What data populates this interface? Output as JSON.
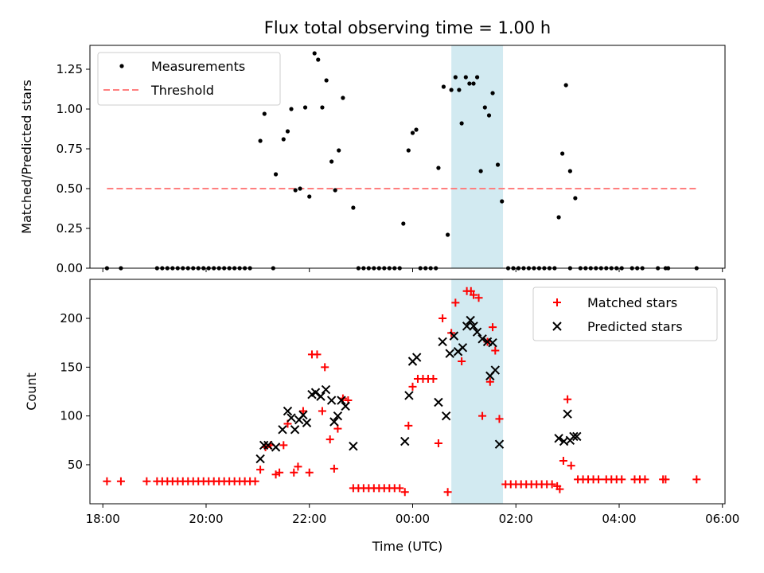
{
  "chart_data": {
    "title": "Flux total observing time = 1.00 h",
    "xlabel": "Time (UTC)",
    "x_unit": "hours since 18:00 UTC",
    "xlim": [
      -0.25,
      12.05
    ],
    "xticks": [
      {
        "x": 0,
        "label": "18:00"
      },
      {
        "x": 2,
        "label": "20:00"
      },
      {
        "x": 4,
        "label": "22:00"
      },
      {
        "x": 6,
        "label": "00:00"
      },
      {
        "x": 8,
        "label": "02:00"
      },
      {
        "x": 10,
        "label": "04:00"
      },
      {
        "x": 12,
        "label": "06:00"
      }
    ],
    "highlight_span": {
      "x0": 6.75,
      "x1": 7.75,
      "color": "#add8e6"
    },
    "colors": {
      "measurements": "#000000",
      "threshold": "#ff7f7f",
      "matched": "#ff0000",
      "predicted": "#000000",
      "span": "#add8e6"
    },
    "top": {
      "type": "scatter",
      "ylabel": "Matched/Predicted stars",
      "ylim": [
        0,
        1.4
      ],
      "yticks": [
        {
          "y": 0,
          "label": "0.00"
        },
        {
          "y": 0.25,
          "label": "0.25"
        },
        {
          "y": 0.5,
          "label": "0.50"
        },
        {
          "y": 0.75,
          "label": "0.75"
        },
        {
          "y": 1.0,
          "label": "1.00"
        },
        {
          "y": 1.25,
          "label": "1.25"
        }
      ],
      "legend": {
        "position": "upper-left",
        "entries": [
          "Measurements",
          "Threshold"
        ]
      },
      "threshold": {
        "value": 0.5,
        "x0": 0.08,
        "x1": 11.5
      },
      "measurements": [
        [
          0.08,
          0
        ],
        [
          0.35,
          0
        ],
        [
          1.05,
          0
        ],
        [
          1.15,
          0
        ],
        [
          1.25,
          0
        ],
        [
          1.35,
          0
        ],
        [
          1.45,
          0
        ],
        [
          1.55,
          0
        ],
        [
          1.65,
          0
        ],
        [
          1.75,
          0
        ],
        [
          1.85,
          0
        ],
        [
          1.95,
          0
        ],
        [
          2.05,
          0
        ],
        [
          2.15,
          0
        ],
        [
          2.25,
          0
        ],
        [
          2.35,
          0
        ],
        [
          2.45,
          0
        ],
        [
          2.55,
          0
        ],
        [
          2.65,
          0
        ],
        [
          2.75,
          0
        ],
        [
          2.85,
          0
        ],
        [
          3.3,
          0
        ],
        [
          3.05,
          0.8
        ],
        [
          3.13,
          0.97
        ],
        [
          3.35,
          0.59
        ],
        [
          3.5,
          0.81
        ],
        [
          3.58,
          0.86
        ],
        [
          3.65,
          1.0
        ],
        [
          3.73,
          0.49
        ],
        [
          3.82,
          0.5
        ],
        [
          3.92,
          1.01
        ],
        [
          4.0,
          0.45
        ],
        [
          4.1,
          1.35
        ],
        [
          4.17,
          1.31
        ],
        [
          4.25,
          1.01
        ],
        [
          4.33,
          1.18
        ],
        [
          4.43,
          0.67
        ],
        [
          4.5,
          0.49
        ],
        [
          4.57,
          0.74
        ],
        [
          4.65,
          1.07
        ],
        [
          4.85,
          0.38
        ],
        [
          4.95,
          0
        ],
        [
          5.05,
          0
        ],
        [
          5.15,
          0
        ],
        [
          5.25,
          0
        ],
        [
          5.35,
          0
        ],
        [
          5.45,
          0
        ],
        [
          5.55,
          0
        ],
        [
          5.65,
          0
        ],
        [
          5.75,
          0
        ],
        [
          5.82,
          0.28
        ],
        [
          5.92,
          0.74
        ],
        [
          6.0,
          0.85
        ],
        [
          6.07,
          0.87
        ],
        [
          6.15,
          0
        ],
        [
          6.25,
          0
        ],
        [
          6.35,
          0
        ],
        [
          6.45,
          0
        ],
        [
          6.5,
          0.63
        ],
        [
          6.6,
          1.14
        ],
        [
          6.68,
          0.21
        ],
        [
          6.75,
          1.12
        ],
        [
          6.83,
          1.2
        ],
        [
          6.9,
          1.12
        ],
        [
          6.95,
          0.91
        ],
        [
          7.03,
          1.2
        ],
        [
          7.1,
          1.16
        ],
        [
          7.18,
          1.16
        ],
        [
          7.25,
          1.2
        ],
        [
          7.32,
          0.61
        ],
        [
          7.4,
          1.01
        ],
        [
          7.48,
          0.96
        ],
        [
          7.55,
          1.1
        ],
        [
          7.65,
          0.65
        ],
        [
          7.73,
          0.42
        ],
        [
          7.85,
          0
        ],
        [
          7.95,
          0
        ],
        [
          8.05,
          0
        ],
        [
          8.15,
          0
        ],
        [
          8.25,
          0
        ],
        [
          8.35,
          0
        ],
        [
          8.45,
          0
        ],
        [
          8.55,
          0
        ],
        [
          8.65,
          0
        ],
        [
          8.75,
          0
        ],
        [
          8.83,
          0.32
        ],
        [
          8.9,
          0.72
        ],
        [
          8.97,
          1.15
        ],
        [
          9.05,
          0.61
        ],
        [
          9.15,
          0.44
        ],
        [
          9.05,
          0
        ],
        [
          9.25,
          0
        ],
        [
          9.35,
          0
        ],
        [
          9.45,
          0
        ],
        [
          9.55,
          0
        ],
        [
          9.65,
          0
        ],
        [
          9.75,
          0
        ],
        [
          9.85,
          0
        ],
        [
          9.95,
          0
        ],
        [
          10.05,
          0
        ],
        [
          10.25,
          0
        ],
        [
          10.35,
          0
        ],
        [
          10.45,
          0
        ],
        [
          10.75,
          0
        ],
        [
          10.9,
          0
        ],
        [
          10.95,
          0
        ],
        [
          11.5,
          0
        ]
      ]
    },
    "bottom": {
      "type": "scatter",
      "ylabel": "Count",
      "ylim": [
        10,
        240
      ],
      "yticks": [
        {
          "y": 50,
          "label": "50"
        },
        {
          "y": 100,
          "label": "100"
        },
        {
          "y": 150,
          "label": "150"
        },
        {
          "y": 200,
          "label": "200"
        }
      ],
      "legend": {
        "position": "upper-right",
        "entries": [
          "Matched stars",
          "Predicted stars"
        ]
      },
      "matched": [
        [
          0.08,
          33
        ],
        [
          0.35,
          33
        ],
        [
          0.85,
          33
        ],
        [
          1.05,
          33
        ],
        [
          1.15,
          33
        ],
        [
          1.25,
          33
        ],
        [
          1.35,
          33
        ],
        [
          1.45,
          33
        ],
        [
          1.55,
          33
        ],
        [
          1.65,
          33
        ],
        [
          1.75,
          33
        ],
        [
          1.85,
          33
        ],
        [
          1.95,
          33
        ],
        [
          2.05,
          33
        ],
        [
          2.15,
          33
        ],
        [
          2.25,
          33
        ],
        [
          2.35,
          33
        ],
        [
          2.45,
          33
        ],
        [
          2.55,
          33
        ],
        [
          2.65,
          33
        ],
        [
          2.75,
          33
        ],
        [
          2.85,
          33
        ],
        [
          2.95,
          33
        ],
        [
          3.05,
          45
        ],
        [
          3.15,
          68
        ],
        [
          3.25,
          70
        ],
        [
          3.35,
          40
        ],
        [
          3.42,
          42
        ],
        [
          3.5,
          70
        ],
        [
          3.58,
          92
        ],
        [
          3.7,
          42
        ],
        [
          3.78,
          48
        ],
        [
          3.88,
          105
        ],
        [
          4.0,
          42
        ],
        [
          4.05,
          163
        ],
        [
          4.15,
          163
        ],
        [
          4.25,
          105
        ],
        [
          4.3,
          150
        ],
        [
          4.4,
          76
        ],
        [
          4.48,
          46
        ],
        [
          4.55,
          87
        ],
        [
          4.65,
          118
        ],
        [
          4.75,
          116
        ],
        [
          4.85,
          26
        ],
        [
          4.95,
          26
        ],
        [
          5.05,
          26
        ],
        [
          5.15,
          26
        ],
        [
          5.25,
          26
        ],
        [
          5.35,
          26
        ],
        [
          5.45,
          26
        ],
        [
          5.55,
          26
        ],
        [
          5.65,
          26
        ],
        [
          5.75,
          26
        ],
        [
          5.85,
          22
        ],
        [
          5.92,
          90
        ],
        [
          6.0,
          130
        ],
        [
          6.1,
          138
        ],
        [
          6.2,
          138
        ],
        [
          6.3,
          138
        ],
        [
          6.4,
          138
        ],
        [
          6.5,
          72
        ],
        [
          6.58,
          200
        ],
        [
          6.68,
          22
        ],
        [
          6.75,
          185
        ],
        [
          6.83,
          216
        ],
        [
          6.95,
          156
        ],
        [
          7.05,
          228
        ],
        [
          7.13,
          228
        ],
        [
          7.18,
          224
        ],
        [
          7.28,
          221
        ],
        [
          7.35,
          100
        ],
        [
          7.45,
          176
        ],
        [
          7.5,
          135
        ],
        [
          7.55,
          191
        ],
        [
          7.6,
          167
        ],
        [
          7.68,
          97
        ],
        [
          7.8,
          30
        ],
        [
          7.9,
          30
        ],
        [
          8.0,
          30
        ],
        [
          8.1,
          30
        ],
        [
          8.2,
          30
        ],
        [
          8.3,
          30
        ],
        [
          8.4,
          30
        ],
        [
          8.5,
          30
        ],
        [
          8.6,
          30
        ],
        [
          8.7,
          30
        ],
        [
          8.8,
          28
        ],
        [
          8.85,
          25
        ],
        [
          8.92,
          54
        ],
        [
          9.0,
          117
        ],
        [
          9.07,
          49
        ],
        [
          9.2,
          35
        ],
        [
          9.3,
          35
        ],
        [
          9.4,
          35
        ],
        [
          9.5,
          35
        ],
        [
          9.6,
          35
        ],
        [
          9.75,
          35
        ],
        [
          9.85,
          35
        ],
        [
          9.95,
          35
        ],
        [
          10.05,
          35
        ],
        [
          10.3,
          35
        ],
        [
          10.4,
          35
        ],
        [
          10.5,
          35
        ],
        [
          10.85,
          35
        ],
        [
          10.9,
          35
        ],
        [
          11.5,
          35
        ]
      ],
      "predicted": [
        [
          3.05,
          56
        ],
        [
          3.12,
          70
        ],
        [
          3.2,
          70
        ],
        [
          3.35,
          68
        ],
        [
          3.48,
          86
        ],
        [
          3.58,
          105
        ],
        [
          3.65,
          98
        ],
        [
          3.72,
          86
        ],
        [
          3.8,
          96
        ],
        [
          3.88,
          101
        ],
        [
          3.95,
          93
        ],
        [
          4.05,
          122
        ],
        [
          4.12,
          124
        ],
        [
          4.22,
          120
        ],
        [
          4.32,
          127
        ],
        [
          4.43,
          116
        ],
        [
          4.48,
          94
        ],
        [
          4.55,
          100
        ],
        [
          4.62,
          116
        ],
        [
          4.7,
          110
        ],
        [
          4.85,
          69
        ],
        [
          5.85,
          74
        ],
        [
          5.93,
          121
        ],
        [
          6.0,
          156
        ],
        [
          6.08,
          160
        ],
        [
          6.5,
          114
        ],
        [
          6.58,
          176
        ],
        [
          6.65,
          100
        ],
        [
          6.72,
          164
        ],
        [
          6.8,
          182
        ],
        [
          6.88,
          166
        ],
        [
          6.97,
          170
        ],
        [
          7.05,
          192
        ],
        [
          7.12,
          198
        ],
        [
          7.18,
          192
        ],
        [
          7.25,
          186
        ],
        [
          7.35,
          179
        ],
        [
          7.45,
          176
        ],
        [
          7.5,
          141
        ],
        [
          7.55,
          175
        ],
        [
          7.6,
          147
        ],
        [
          7.68,
          71
        ],
        [
          8.83,
          77
        ],
        [
          8.93,
          74
        ],
        [
          9.0,
          102
        ],
        [
          9.05,
          75
        ],
        [
          9.12,
          79
        ],
        [
          9.18,
          79
        ]
      ]
    }
  }
}
